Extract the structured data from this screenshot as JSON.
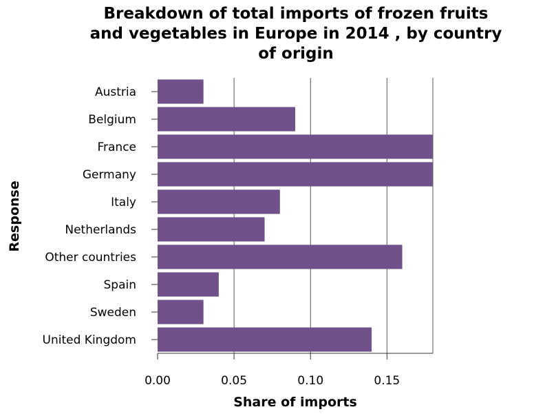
{
  "chart_data": {
    "type": "bar",
    "orientation": "horizontal",
    "title_lines": [
      "Breakdown of total imports of frozen fruits",
      "and vegetables in Europe in 2014 , by country",
      "of origin"
    ],
    "xlabel": "Share of imports",
    "ylabel": "Response",
    "categories": [
      "Austria",
      "Belgium",
      "France",
      "Germany",
      "Italy",
      "Netherlands",
      "Other countries",
      "Spain",
      "Sweden",
      "United Kingdom"
    ],
    "values": [
      0.03,
      0.09,
      0.18,
      0.18,
      0.08,
      0.07,
      0.16,
      0.04,
      0.03,
      0.14
    ],
    "xlim": [
      0,
      0.18
    ],
    "xticks": [
      "0.00",
      "0.05",
      "0.10",
      "0.15"
    ],
    "xtick_values": [
      0,
      0.05,
      0.1,
      0.15
    ],
    "grid": "vertical",
    "bar_color": "#705189"
  }
}
